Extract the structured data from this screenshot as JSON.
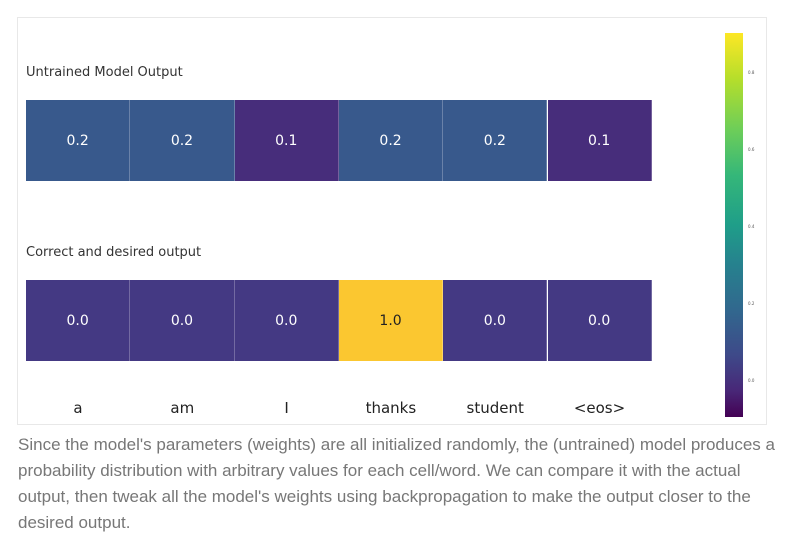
{
  "chart_data": {
    "type": "heatmap",
    "categories": [
      "a",
      "am",
      "I",
      "thanks",
      "student",
      "<eos>"
    ],
    "series": [
      {
        "name": "Untrained Model Output",
        "values": [
          0.2,
          0.2,
          0.1,
          0.2,
          0.2,
          0.1
        ]
      },
      {
        "name": "Correct and desired output",
        "values": [
          0.0,
          0.0,
          0.0,
          1.0,
          0.0,
          0.0
        ]
      }
    ],
    "value_labels": [
      [
        "0.2",
        "0.2",
        "0.1",
        "0.2",
        "0.2",
        "0.1"
      ],
      [
        "0.0",
        "0.0",
        "0.0",
        "1.0",
        "0.0",
        "0.0"
      ]
    ],
    "colorscale": "viridis",
    "colorbar_range": [
      0,
      1
    ],
    "colorbar_ticks": [
      "0.8",
      "0.6",
      "0.4",
      "0.2",
      "0.0"
    ],
    "grid": false,
    "colors": {
      "cell_0.2": "#38598c",
      "cell_0.1": "#472d7b",
      "cell_0.0": "#443983",
      "cell_1.0": "#fbc730"
    }
  },
  "caption": "Since the model's parameters (weights) are all initialized randomly, the (untrained) model produces a probability distribution with arbitrary values for each cell/word. We can compare it with the actual output, then tweak all the model's weights using backpropagation to make the output closer to the desired output."
}
